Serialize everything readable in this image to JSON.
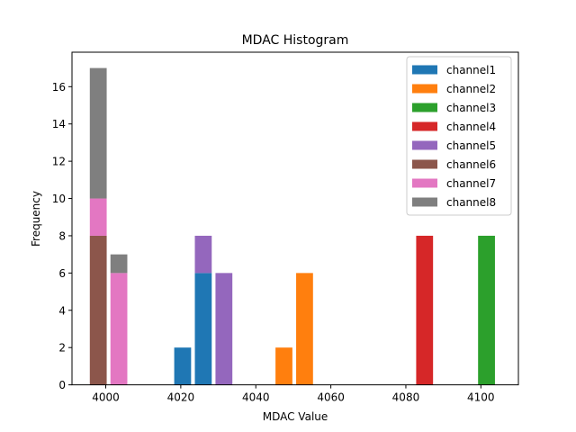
{
  "chart_data": {
    "type": "bar",
    "title": "MDAC Histogram",
    "xlabel": "MDAC Value",
    "ylabel": "Frequency",
    "xlim": [
      3991,
      4110
    ],
    "ylim": [
      0,
      17.85
    ],
    "xticks": [
      4000,
      4020,
      4040,
      4060,
      4080,
      4100
    ],
    "yticks": [
      0,
      2,
      4,
      6,
      8,
      10,
      12,
      14,
      16
    ],
    "bar_width": 4.5,
    "stacked": true,
    "legend_position": "top-right",
    "series": [
      {
        "name": "channel1",
        "color": "#1f77b4",
        "bars": [
          {
            "x": 4020.5,
            "y": 2
          },
          {
            "x": 4026,
            "y": 6
          }
        ]
      },
      {
        "name": "channel2",
        "color": "#ff7f0e",
        "bars": [
          {
            "x": 4047.5,
            "y": 2
          },
          {
            "x": 4053,
            "y": 6
          }
        ]
      },
      {
        "name": "channel3",
        "color": "#2ca02c",
        "bars": [
          {
            "x": 4101.5,
            "y": 8
          }
        ]
      },
      {
        "name": "channel4",
        "color": "#d62728",
        "bars": [
          {
            "x": 4085,
            "y": 8
          }
        ]
      },
      {
        "name": "channel5",
        "color": "#9467bd",
        "bars": [
          {
            "x": 4026,
            "y": 2
          },
          {
            "x": 4031.5,
            "y": 6
          }
        ]
      },
      {
        "name": "channel6",
        "color": "#8c564b",
        "bars": [
          {
            "x": 3998,
            "y": 8
          }
        ]
      },
      {
        "name": "channel7",
        "color": "#e377c2",
        "bars": [
          {
            "x": 3998,
            "y": 2
          },
          {
            "x": 4003.5,
            "y": 6
          }
        ]
      },
      {
        "name": "channel8",
        "color": "#7f7f7f",
        "bars": [
          {
            "x": 3998,
            "y": 7
          },
          {
            "x": 4003.5,
            "y": 1
          }
        ]
      }
    ]
  }
}
